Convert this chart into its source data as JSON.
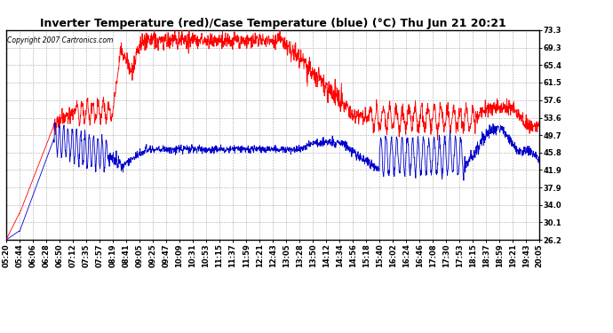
{
  "title": "Inverter Temperature (red)/Case Temperature (blue) (°C) Thu Jun 21 20:21",
  "copyright": "Copyright 2007 Cartronics.com",
  "background_color": "#ffffff",
  "plot_background": "#ffffff",
  "grid_color": "#aaaaaa",
  "red_color": "#ff0000",
  "blue_color": "#0000cc",
  "yticks": [
    26.2,
    30.1,
    34.0,
    37.9,
    41.9,
    45.8,
    49.7,
    53.6,
    57.6,
    61.5,
    65.4,
    69.3,
    73.3
  ],
  "xtick_labels": [
    "05:20",
    "05:44",
    "06:06",
    "06:28",
    "06:50",
    "07:12",
    "07:35",
    "07:57",
    "08:19",
    "08:41",
    "09:05",
    "09:25",
    "09:47",
    "10:09",
    "10:31",
    "10:53",
    "11:15",
    "11:37",
    "11:59",
    "12:21",
    "12:43",
    "13:05",
    "13:28",
    "13:50",
    "14:12",
    "14:34",
    "14:56",
    "15:18",
    "15:40",
    "16:02",
    "16:24",
    "16:46",
    "17:08",
    "17:30",
    "17:53",
    "18:15",
    "18:37",
    "18:59",
    "19:21",
    "19:43",
    "20:05"
  ],
  "ymin": 26.2,
  "ymax": 73.3,
  "title_fontsize": 9,
  "tick_fontsize": 6,
  "copyright_fontsize": 5.5
}
